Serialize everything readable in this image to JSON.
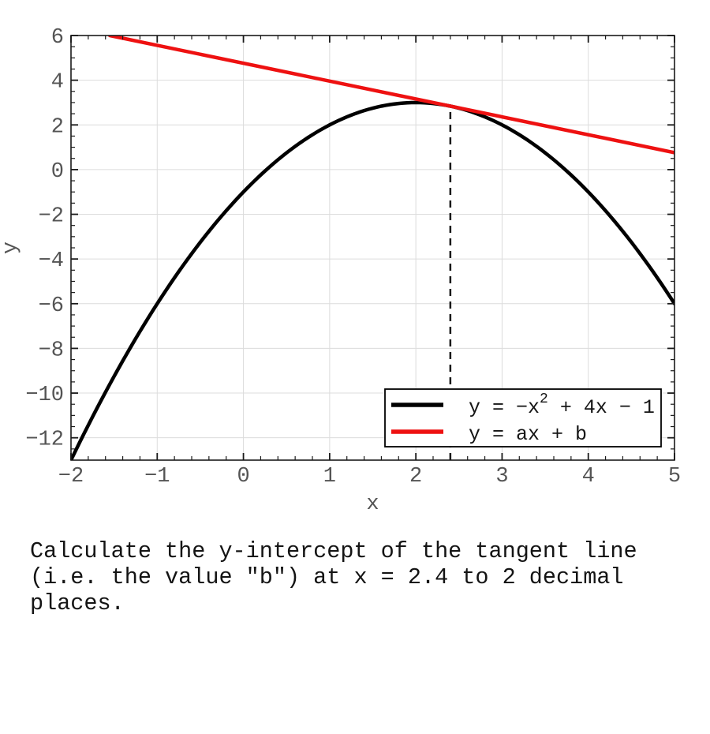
{
  "page": {
    "background": "#ffffff"
  },
  "question": {
    "text": "Calculate the y-intercept of the tangent line\n(i.e. the value \"b\") at x = 2.4 to 2 decimal\nplaces."
  },
  "chart_data": {
    "type": "line",
    "title": "",
    "xlabel": "x",
    "ylabel": "y",
    "xlim": [
      -2,
      5
    ],
    "ylim": [
      -13,
      6
    ],
    "grid": true,
    "grid_color": "#dcdcdc",
    "frame_color": "#1a1a1a",
    "tick_label_color": "#545454",
    "x_ticks": {
      "values": [
        -2,
        -1,
        0,
        1,
        2,
        3,
        4,
        5
      ],
      "labels": [
        "−2",
        "−1",
        "0",
        "1",
        "2",
        "3",
        "4",
        "5"
      ],
      "minor_step": 0.2
    },
    "y_ticks": {
      "values": [
        6,
        4,
        2,
        0,
        -2,
        -4,
        -6,
        -8,
        -10,
        -12
      ],
      "labels": [
        "6",
        "4",
        "2",
        "0",
        "−2",
        "−4",
        "−6",
        "−8",
        "−10",
        "−12"
      ],
      "minor_step": 0.5
    },
    "series": [
      {
        "name": "quadratic-curve",
        "fn": "quadratic",
        "coefficients": {
          "a": -1,
          "b": 4,
          "c": -1
        },
        "x_range": [
          -2,
          5
        ],
        "color": "#000000",
        "stroke_width": 4.5,
        "legend_pre": "y = −x",
        "legend_sup": "2",
        "legend_post": " + 4x − 1"
      },
      {
        "name": "tangent-line",
        "fn": "linear",
        "slope": -0.8,
        "intercept": 4.76,
        "x_range": [
          -1.55,
          5
        ],
        "color": "#ee1111",
        "stroke_width": 4.5,
        "legend_pre": "y = ax + b",
        "legend_sup": "",
        "legend_post": ""
      }
    ],
    "tangent_point": {
      "x": 2.4,
      "y": 2.84
    },
    "dashed_guide": {
      "x": 2.4,
      "y_from": -13,
      "y_to": 2.84,
      "color": "#1a1a1a"
    },
    "legend": {
      "position": "lower-right",
      "background": "#ffffff",
      "border_color": "#000000"
    }
  }
}
